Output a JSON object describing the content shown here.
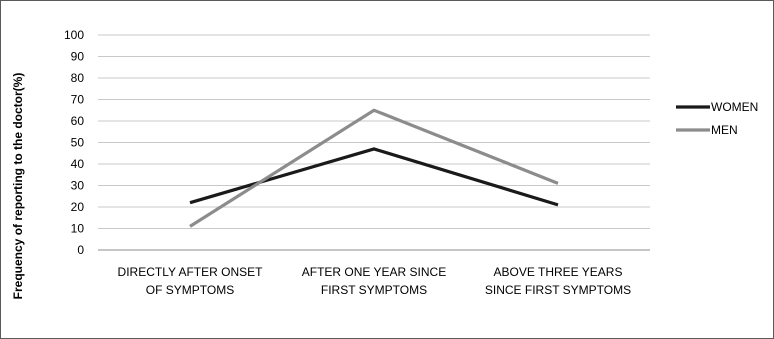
{
  "chart_data": {
    "type": "line",
    "title": "",
    "xlabel": "",
    "ylabel": "Frequency of reporting to the doctor(%)",
    "ylim": [
      0,
      100
    ],
    "yticks": [
      0,
      10,
      20,
      30,
      40,
      50,
      60,
      70,
      80,
      90,
      100
    ],
    "grid": true,
    "legend_position": "right",
    "categories": [
      [
        "DIRECTLY AFTER ONSET",
        "OF SYMPTOMS"
      ],
      [
        "AFTER ONE YEAR SINCE",
        "FIRST SYMPTOMS"
      ],
      [
        "ABOVE THREE YEARS",
        "SINCE FIRST SYMPTOMS"
      ]
    ],
    "series": [
      {
        "name": "WOMEN",
        "color": "#1a1a1a",
        "values": [
          22,
          47,
          21
        ]
      },
      {
        "name": "MEN",
        "color": "#8c8c8c",
        "values": [
          11,
          65,
          31
        ]
      }
    ]
  }
}
